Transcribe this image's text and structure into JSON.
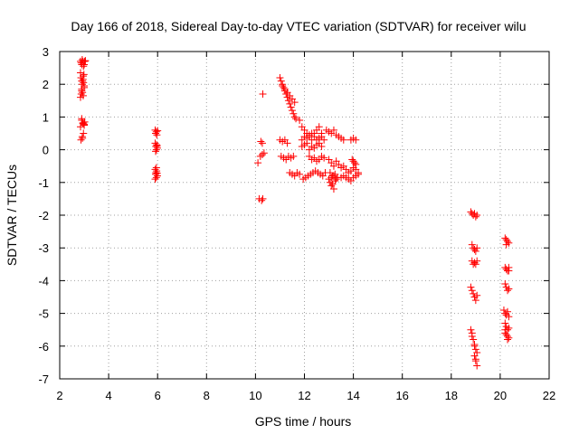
{
  "chart_data": {
    "type": "scatter",
    "title": "Day 166 of 2018, Sidereal Day-to-day VTEC variation (SDTVAR) for receiver wilu",
    "xlabel": "GPS time / hours",
    "ylabel": "SDTVAR / TECUs",
    "xlim": [
      2,
      22
    ],
    "ylim": [
      -7,
      3
    ],
    "xticks": [
      "2",
      "4",
      "6",
      "8",
      "10",
      "12",
      "14",
      "16",
      "18",
      "20",
      "22"
    ],
    "yticks": [
      "3",
      "2",
      "1",
      "0",
      "-1",
      "-2",
      "-3",
      "-4",
      "-5",
      "-6",
      "-7"
    ],
    "grid": true,
    "marker": "+",
    "color": "#ff0000",
    "series": [
      {
        "name": "SDTVAR",
        "x": [
          2.85,
          2.88,
          2.9,
          2.92,
          2.95,
          2.97,
          3.0,
          3.02,
          3.05,
          2.85,
          2.87,
          2.9,
          2.92,
          2.95,
          2.97,
          3.0,
          2.9,
          2.93,
          2.96,
          3.0,
          2.85,
          2.88,
          2.9,
          2.93,
          2.96,
          2.99,
          2.9,
          2.95,
          3.0,
          3.02,
          2.85,
          2.9,
          2.95,
          3.0,
          2.87,
          2.92,
          2.97,
          2.93,
          5.9,
          5.92,
          5.95,
          5.97,
          6.0,
          5.9,
          5.93,
          5.96,
          5.99,
          5.92,
          5.95,
          5.98,
          5.9,
          5.93,
          5.96,
          5.99,
          5.92,
          5.95,
          5.98,
          5.9,
          5.95,
          10.1,
          10.2,
          10.28,
          10.35,
          10.22,
          10.28,
          10.3,
          10.15,
          10.25,
          10.3,
          11.0,
          11.05,
          11.1,
          11.15,
          11.2,
          11.25,
          11.3,
          11.35,
          11.4,
          11.45,
          11.5,
          11.55,
          11.6,
          11.65,
          11.1,
          11.2,
          11.3,
          11.4,
          11.5,
          11.6,
          11.0,
          11.1,
          11.2,
          11.3,
          11.05,
          11.15,
          11.25,
          11.35,
          11.45,
          11.55,
          11.4,
          11.5,
          11.6,
          11.7,
          11.8,
          11.8,
          11.9,
          12.0,
          12.1,
          12.2,
          12.3,
          12.4,
          12.5,
          12.6,
          12.7,
          11.9,
          12.0,
          12.1,
          12.2,
          12.3,
          12.4,
          12.5,
          12.6,
          12.7,
          12.8,
          11.9,
          12.0,
          12.1,
          12.2,
          12.3,
          12.4,
          12.5,
          12.6,
          12.7,
          12.2,
          12.3,
          12.4,
          12.5,
          12.6,
          12.7,
          12.8,
          11.95,
          12.05,
          12.15,
          12.25,
          12.35,
          12.45,
          12.55,
          12.65,
          12.75,
          12.85,
          12.9,
          13.0,
          13.1,
          13.2,
          13.3,
          13.4,
          13.5,
          13.6,
          13.0,
          13.1,
          13.2,
          13.3,
          13.4,
          13.5,
          13.05,
          13.15,
          13.25,
          13.35,
          13.05,
          13.1,
          13.15,
          13.2,
          13.25,
          13.0,
          13.1,
          13.2,
          13.3,
          13.5,
          13.6,
          13.7,
          13.8,
          13.9,
          14.0,
          14.1,
          14.2,
          13.6,
          13.7,
          13.8,
          13.9,
          14.0,
          14.1,
          14.2,
          13.9,
          14.0,
          14.1,
          13.95,
          14.0,
          14.05,
          14.1,
          18.8,
          18.85,
          18.9,
          18.95,
          19.0,
          19.05,
          18.85,
          18.9,
          18.95,
          19.0,
          19.05,
          18.85,
          18.9,
          18.95,
          19.0,
          19.05,
          18.8,
          18.85,
          18.9,
          18.95,
          19.0,
          19.05,
          18.8,
          18.85,
          18.9,
          18.95,
          19.0,
          19.05,
          18.95,
          19.0,
          19.05,
          18.85,
          18.95,
          19.0,
          20.2,
          20.25,
          20.3,
          20.35,
          20.2,
          20.25,
          20.3,
          20.35,
          20.2,
          20.25,
          20.3,
          20.35,
          20.15,
          20.2,
          20.25,
          20.3,
          20.35,
          20.2,
          20.25,
          20.3,
          20.35,
          20.2,
          20.25,
          20.3,
          20.35,
          20.2,
          20.3,
          20.25,
          20.35
        ],
        "y": [
          2.7,
          2.65,
          2.6,
          2.75,
          2.7,
          2.55,
          2.6,
          2.7,
          2.72,
          2.35,
          2.2,
          2.1,
          2.0,
          2.15,
          2.05,
          1.95,
          1.85,
          1.75,
          1.65,
          1.9,
          1.6,
          1.7,
          1.8,
          2.1,
          2.25,
          2.3,
          0.9,
          0.8,
          0.75,
          0.85,
          0.7,
          0.95,
          0.82,
          0.78,
          0.3,
          0.4,
          0.5,
          0.35,
          0.6,
          0.5,
          0.55,
          0.45,
          0.58,
          0.2,
          0.1,
          0.15,
          0.05,
          -0.05,
          0.0,
          0.12,
          -0.6,
          -0.7,
          -0.65,
          -0.8,
          -0.75,
          -0.85,
          -0.72,
          -0.9,
          -0.55,
          -0.4,
          -0.2,
          -0.15,
          -0.1,
          0.25,
          0.2,
          1.7,
          -1.5,
          -1.55,
          -1.5,
          2.2,
          2.1,
          2.0,
          1.9,
          1.8,
          1.7,
          1.6,
          1.5,
          1.4,
          1.3,
          1.2,
          1.1,
          1.0,
          0.95,
          1.95,
          1.85,
          1.75,
          1.65,
          1.55,
          1.45,
          0.3,
          0.25,
          0.3,
          0.2,
          -0.2,
          -0.25,
          -0.3,
          -0.2,
          -0.25,
          -0.2,
          -0.7,
          -0.75,
          -0.8,
          -0.7,
          -0.75,
          0.9,
          0.7,
          0.6,
          0.5,
          0.4,
          0.3,
          0.5,
          0.6,
          0.7,
          0.5,
          0.3,
          0.4,
          0.35,
          0.45,
          0.5,
          0.4,
          0.3,
          0.35,
          0.4,
          0.3,
          0.1,
          0.15,
          0.2,
          0.0,
          0.1,
          0.05,
          0.15,
          0.2,
          0.1,
          -0.2,
          -0.3,
          -0.25,
          -0.35,
          -0.3,
          -0.2,
          -0.25,
          -0.9,
          -0.85,
          -0.8,
          -0.75,
          -0.7,
          -0.65,
          -0.7,
          -0.75,
          -0.8,
          -0.7,
          0.6,
          0.55,
          0.5,
          0.6,
          0.45,
          0.4,
          0.35,
          0.3,
          -0.3,
          -0.4,
          -0.5,
          -0.35,
          -0.45,
          -0.55,
          -0.7,
          -0.8,
          -0.75,
          -0.85,
          -1.0,
          -1.1,
          -1.05,
          -1.2,
          -0.95,
          -0.9,
          -0.85,
          -0.8,
          -0.9,
          -0.85,
          -0.8,
          -0.85,
          -0.9,
          -0.95,
          -0.85,
          -0.8,
          -0.75,
          -0.5,
          -0.6,
          -0.7,
          -0.65,
          -0.55,
          -0.6,
          -0.7,
          0.3,
          0.35,
          0.3,
          -0.3,
          -0.35,
          -0.4,
          -0.45,
          -1.9,
          -1.95,
          -2.0,
          -1.95,
          -2.05,
          -2.0,
          -2.9,
          -3.0,
          -3.05,
          -3.1,
          -3.0,
          -3.4,
          -3.5,
          -3.45,
          -3.5,
          -3.4,
          -4.2,
          -4.3,
          -4.4,
          -4.5,
          -4.6,
          -4.45,
          -5.5,
          -5.6,
          -5.8,
          -5.95,
          -6.1,
          -6.2,
          -6.3,
          -6.45,
          -6.6,
          -5.7,
          -6.0,
          -6.4,
          -2.7,
          -2.75,
          -2.8,
          -2.85,
          -3.6,
          -3.65,
          -3.7,
          -3.6,
          -4.1,
          -4.2,
          -4.3,
          -4.25,
          -4.9,
          -5.0,
          -5.05,
          -4.95,
          -5.1,
          -5.3,
          -5.4,
          -5.5,
          -5.45,
          -5.6,
          -5.65,
          -5.7,
          -5.75,
          -5.5,
          -5.8,
          -2.9,
          -3.7
        ]
      }
    ]
  }
}
